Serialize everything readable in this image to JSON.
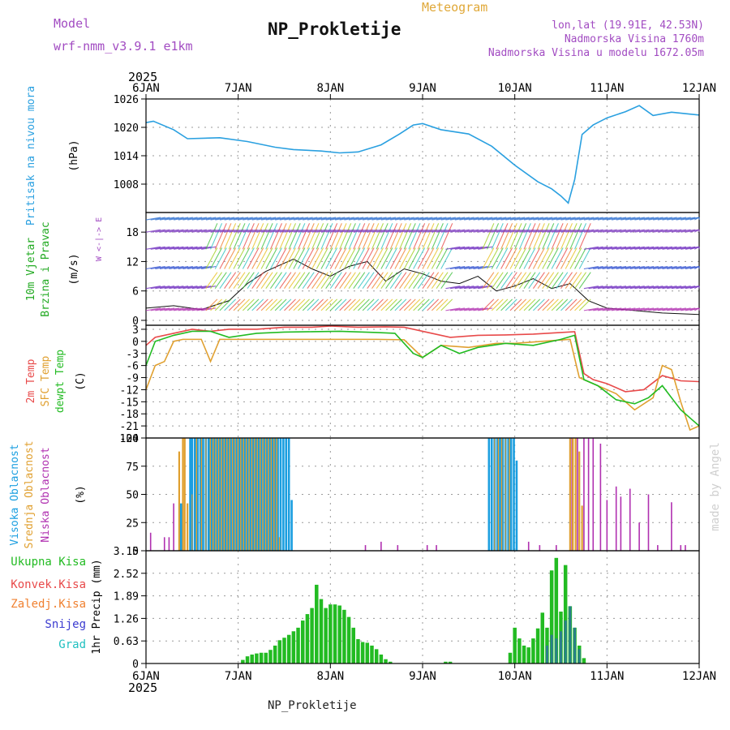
{
  "header": {
    "model_label": "Model",
    "model_name": "wrf-nmm_v3.9.1 e1km",
    "title": "NP_Prokletije",
    "subtitle": "Meteogram",
    "location": "lon,lat (19.91E, 42.53N)",
    "altitude": "Nadmorska Visina 1760m",
    "model_altitude": "Nadmorska Visina u modelu 1672.05m",
    "footer": "NP_Prokletije",
    "credit": "made by Angel"
  },
  "colors": {
    "pressure": "#2aa0e0",
    "temp2m": "#e84a4a",
    "sfc_temp": "#e0a030",
    "dewpoint": "#22bb22",
    "cloud_high": "#1a9ee0",
    "cloud_mid": "#e0a030",
    "cloud_low": "#b030b0",
    "precip_total": "#22bb22",
    "precip_conv": "#e84a4a",
    "precip_frozen": "#f08030",
    "precip_snow": "#3b3bd0",
    "precip_graupel": "#20c0c0",
    "grid": "#9a9a9a"
  },
  "chart_data": [
    {
      "type": "line",
      "name": "pressure",
      "ylabel_colored": "Pritisak na nivou mora",
      "ylabel_unit": "(hPa)",
      "ylim": [
        1002,
        1026
      ],
      "yticks": [
        "1026",
        "1020",
        "1014",
        "1008"
      ],
      "ytick_values": [
        1026,
        1020,
        1014,
        1008
      ],
      "x_time_labels_top": [
        "6JAN",
        "7JAN",
        "8JAN",
        "9JAN",
        "10JAN",
        "11JAN",
        "12JAN"
      ],
      "year_label": "2025",
      "grid": true,
      "series": [
        {
          "key": "pressure",
          "x": [
            0,
            0.08,
            0.3,
            0.45,
            0.8,
            1.1,
            1.4,
            1.6,
            1.9,
            2.1,
            2.3,
            2.55,
            2.75,
            2.9,
            3.0,
            3.2,
            3.5,
            3.75,
            4.0,
            4.25,
            4.4,
            4.5,
            4.58,
            4.65,
            4.73,
            4.85,
            5.0,
            5.2,
            5.35,
            5.5,
            5.7,
            5.9,
            6.0
          ],
          "y": [
            1021.0,
            1021.3,
            1019.5,
            1017.6,
            1017.8,
            1017.0,
            1015.8,
            1015.3,
            1015.0,
            1014.6,
            1014.8,
            1016.3,
            1018.6,
            1020.5,
            1020.8,
            1019.5,
            1018.6,
            1016.0,
            1012.0,
            1008.5,
            1007.0,
            1005.5,
            1004.0,
            1009.0,
            1018.5,
            1020.5,
            1022.0,
            1023.3,
            1024.6,
            1022.5,
            1023.2,
            1022.8,
            1022.6
          ]
        }
      ]
    },
    {
      "type": "line",
      "name": "wind",
      "ylabel_colored_1": "10m Vjetar",
      "ylabel_colored_2": "Brzina i Pravac",
      "ylabel_unit": "(m/s)",
      "compass": "W <-|-> E",
      "ylim": [
        -1,
        22
      ],
      "yticks": [
        "18",
        "12",
        "6",
        "0"
      ],
      "ytick_values": [
        18,
        12,
        6,
        0
      ],
      "grid": true,
      "series": [
        {
          "key": "wind_speed",
          "x": [
            0,
            0.3,
            0.6,
            0.9,
            1.1,
            1.3,
            1.6,
            1.8,
            2.0,
            2.2,
            2.4,
            2.6,
            2.8,
            3.0,
            3.2,
            3.4,
            3.6,
            3.8,
            4.0,
            4.2,
            4.4,
            4.6,
            4.8,
            5.0,
            5.3,
            5.6,
            6.0
          ],
          "y": [
            2.5,
            3.0,
            2.2,
            4.0,
            7.5,
            10.0,
            12.5,
            10.5,
            9.0,
            11.0,
            12.0,
            8.0,
            10.5,
            9.5,
            8.0,
            7.5,
            9.0,
            6.0,
            7.0,
            8.5,
            6.5,
            7.5,
            4.0,
            2.5,
            2.0,
            1.5,
            1.2
          ]
        }
      ]
    },
    {
      "type": "line",
      "name": "temperature",
      "ylabel_temp2m": "2m Temp",
      "ylabel_sfc": "SFC Temp",
      "ylabel_dew": "dewpt Temp",
      "ylabel_unit": "(C)",
      "ylim": [
        -24,
        4
      ],
      "yticks": [
        "3",
        "0",
        "-3",
        "-6",
        "-9",
        "-12",
        "-15",
        "-18",
        "-21",
        "-24"
      ],
      "ytick_values": [
        3,
        0,
        -3,
        -6,
        -9,
        -12,
        -15,
        -18,
        -21,
        -24
      ],
      "grid": true,
      "series": [
        {
          "key": "temp2m",
          "x": [
            0,
            0.1,
            0.3,
            0.5,
            0.7,
            0.9,
            1.2,
            1.5,
            1.8,
            2.0,
            2.3,
            2.6,
            2.8,
            3.0,
            3.3,
            3.6,
            3.9,
            4.2,
            4.5,
            4.65,
            4.75,
            4.85,
            5.0,
            5.2,
            5.4,
            5.6,
            5.8,
            6.0
          ],
          "y": [
            -1.0,
            1.0,
            2.0,
            3.0,
            2.5,
            3.0,
            3.0,
            3.5,
            3.5,
            3.8,
            3.5,
            3.6,
            3.5,
            2.5,
            1.0,
            1.5,
            1.6,
            1.8,
            2.2,
            2.4,
            -8.0,
            -9.5,
            -10.5,
            -12.5,
            -12.0,
            -8.5,
            -9.8,
            -10.0
          ]
        },
        {
          "key": "sfc_temp",
          "x": [
            0,
            0.1,
            0.2,
            0.3,
            0.4,
            0.6,
            0.7,
            0.8,
            1.0,
            1.5,
            2.0,
            2.5,
            2.8,
            3.0,
            3.2,
            3.5,
            3.8,
            4.0,
            4.3,
            4.6,
            4.7,
            4.8,
            5.0,
            5.1,
            5.3,
            5.5,
            5.6,
            5.7,
            5.8,
            5.9,
            6.0
          ],
          "y": [
            -12.0,
            -6.0,
            -5.0,
            0.0,
            0.5,
            0.5,
            -5.0,
            0.5,
            0.5,
            0.5,
            0.5,
            0.5,
            0.4,
            -4.0,
            -1.0,
            -1.5,
            -0.5,
            -0.5,
            0.0,
            0.5,
            -9.0,
            -10.0,
            -12.0,
            -13.0,
            -17.0,
            -14.0,
            -6.0,
            -7.0,
            -15.0,
            -22.0,
            -21.0
          ]
        },
        {
          "key": "dewpoint",
          "x": [
            0,
            0.1,
            0.3,
            0.5,
            0.7,
            0.9,
            1.2,
            1.5,
            1.8,
            2.1,
            2.5,
            2.7,
            2.9,
            3.0,
            3.2,
            3.4,
            3.6,
            3.9,
            4.2,
            4.5,
            4.65,
            4.75,
            4.9,
            5.1,
            5.3,
            5.45,
            5.6,
            5.7,
            5.8,
            5.9,
            6.0
          ],
          "y": [
            -6.0,
            0.0,
            1.5,
            2.5,
            2.5,
            1.0,
            2.0,
            2.3,
            2.4,
            2.5,
            2.2,
            2.0,
            -3.0,
            -4.0,
            -1.0,
            -3.0,
            -1.5,
            -0.5,
            -1.0,
            0.5,
            1.5,
            -9.5,
            -11.0,
            -14.5,
            -15.5,
            -14.0,
            -11.0,
            -14.0,
            -17.0,
            -19.0,
            -21.0
          ]
        }
      ]
    },
    {
      "type": "bar",
      "name": "cloud",
      "ylabel_high": "Visoka Oblacnost",
      "ylabel_mid": "Srednja Oblacnost",
      "ylabel_low": "Niska Oblacnost",
      "ylabel_unit": "(%)",
      "ylim": [
        0,
        100
      ],
      "yticks": [
        "100",
        "75",
        "50",
        "25",
        "0"
      ],
      "ytick_values": [
        100,
        75,
        50,
        25,
        0
      ],
      "grid": true,
      "high_x": [
        0.38,
        0.48,
        0.5,
        0.53,
        0.56,
        0.59,
        0.62,
        0.65,
        0.68,
        0.71,
        0.74,
        0.77,
        0.8,
        0.83,
        0.86,
        0.89,
        0.92,
        0.95,
        0.98,
        1.01,
        1.04,
        1.07,
        1.1,
        1.13,
        1.16,
        1.19,
        1.22,
        1.25,
        1.28,
        1.31,
        1.34,
        1.37,
        1.4,
        1.43,
        1.46,
        1.49,
        1.52,
        1.55,
        1.58,
        3.72,
        3.75,
        3.78,
        3.81,
        3.84,
        3.87,
        3.9,
        3.93,
        3.96,
        3.99,
        4.02
      ],
      "high_values": [
        42,
        100,
        100,
        100,
        100,
        100,
        100,
        100,
        100,
        100,
        100,
        100,
        100,
        100,
        100,
        100,
        100,
        100,
        100,
        100,
        100,
        100,
        100,
        100,
        100,
        100,
        100,
        100,
        100,
        100,
        100,
        100,
        100,
        100,
        100,
        100,
        100,
        100,
        45,
        100,
        100,
        100,
        100,
        100,
        100,
        100,
        100,
        100,
        100,
        80
      ],
      "mid_x": [
        0.36,
        0.4,
        0.42,
        0.45,
        0.5,
        0.55,
        0.6,
        0.65,
        0.7,
        0.73,
        0.76,
        0.79,
        0.82,
        0.85,
        0.88,
        0.91,
        0.94,
        0.97,
        1.0,
        1.03,
        1.06,
        1.09,
        1.12,
        1.15,
        1.18,
        1.21,
        1.24,
        1.27,
        1.3,
        1.33,
        1.36,
        1.39,
        1.42,
        1.45,
        3.78,
        3.82,
        3.86,
        3.9,
        3.94,
        4.6,
        4.63,
        4.66,
        4.7,
        4.73
      ],
      "mid_values": [
        88,
        100,
        100,
        42,
        50,
        100,
        100,
        100,
        100,
        100,
        100,
        100,
        100,
        100,
        100,
        100,
        100,
        100,
        100,
        100,
        100,
        100,
        100,
        100,
        100,
        100,
        100,
        100,
        100,
        100,
        100,
        100,
        100,
        12,
        100,
        100,
        100,
        100,
        100,
        100,
        100,
        100,
        88,
        40
      ],
      "low_x": [
        0.05,
        0.2,
        0.25,
        0.3,
        2.38,
        2.55,
        2.73,
        3.05,
        3.15,
        4.15,
        4.27,
        4.45,
        4.62,
        4.68,
        4.75,
        4.8,
        4.85,
        4.93,
        5.0,
        5.1,
        5.15,
        5.25,
        5.35,
        5.45,
        5.55,
        5.7,
        5.8,
        5.85
      ],
      "low_values": [
        16,
        12,
        12,
        42,
        5,
        8,
        5,
        5,
        5,
        8,
        5,
        5,
        100,
        100,
        100,
        100,
        100,
        95,
        45,
        57,
        48,
        55,
        25,
        50,
        5,
        43,
        5,
        5
      ]
    },
    {
      "type": "bar",
      "name": "precip",
      "legend": [
        "Ukupna Kisa",
        "Konvek.Kisa",
        "Zaledj.Kisa",
        "Snijeg",
        "Grad"
      ],
      "ylabel_unit": "1hr Precip (mm)",
      "ylim": [
        0,
        3.15
      ],
      "yticks": [
        "3.15",
        "2.52",
        "1.89",
        "1.26",
        "0.63",
        "0"
      ],
      "ytick_values": [
        3.15,
        2.52,
        1.89,
        1.26,
        0.63,
        0
      ],
      "x_time_labels_bottom": [
        "6JAN",
        "7JAN",
        "8JAN",
        "9JAN",
        "10JAN",
        "11JAN",
        "12JAN"
      ],
      "year_label": "2025",
      "grid": true,
      "total_x": [
        1.05,
        1.1,
        1.15,
        1.2,
        1.25,
        1.3,
        1.35,
        1.4,
        1.45,
        1.5,
        1.55,
        1.6,
        1.65,
        1.7,
        1.75,
        1.8,
        1.85,
        1.9,
        1.95,
        2.0,
        2.05,
        2.1,
        2.15,
        2.2,
        2.25,
        2.3,
        2.35,
        2.4,
        2.45,
        2.5,
        2.55,
        2.6,
        2.65,
        3.25,
        3.3,
        3.95,
        4.0,
        4.05,
        4.1,
        4.15,
        4.2,
        4.25,
        4.3,
        4.35,
        4.4,
        4.45,
        4.5,
        4.55,
        4.6,
        4.65,
        4.7,
        4.75
      ],
      "total_values": [
        0.1,
        0.2,
        0.25,
        0.28,
        0.3,
        0.3,
        0.38,
        0.5,
        0.65,
        0.72,
        0.8,
        0.9,
        1.0,
        1.2,
        1.38,
        1.55,
        2.2,
        1.8,
        1.55,
        1.65,
        1.65,
        1.62,
        1.5,
        1.3,
        1.0,
        0.68,
        0.6,
        0.58,
        0.5,
        0.4,
        0.25,
        0.12,
        0.05,
        0.05,
        0.05,
        0.3,
        1.0,
        0.7,
        0.5,
        0.45,
        0.7,
        0.98,
        1.42,
        1.0,
        2.6,
        2.95,
        1.45,
        2.75,
        1.6,
        1.0,
        0.5,
        0.15
      ],
      "snow_x": [
        4.35,
        4.4,
        4.45,
        4.5,
        4.55,
        4.6,
        4.65,
        4.7
      ],
      "snow_values": [
        0.5,
        0.8,
        0.7,
        0.9,
        1.2,
        1.6,
        1.0,
        0.4
      ]
    }
  ]
}
